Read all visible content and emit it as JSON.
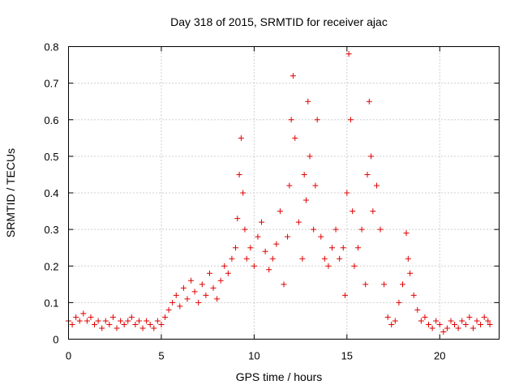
{
  "chart_data": {
    "type": "scatter",
    "title": "Day 318 of 2015, SRMTID for receiver ajac",
    "xlabel": "GPS time / hours",
    "ylabel": "SRMTID / TECUs",
    "xlim": [
      0,
      23.2
    ],
    "ylim": [
      0,
      0.8
    ],
    "xticks": [
      0,
      5,
      10,
      15,
      20
    ],
    "xtick_labels": [
      "0",
      "5",
      "10",
      "15",
      "20"
    ],
    "yticks": [
      0,
      0.1,
      0.2,
      0.3,
      0.4,
      0.5,
      0.6,
      0.7,
      0.8
    ],
    "ytick_labels": [
      "0",
      "0.1",
      "0.2",
      "0.3",
      "0.4",
      "0.5",
      "0.6",
      "0.7",
      "0.8"
    ],
    "grid": true,
    "marker": "+",
    "color": "#e00000",
    "series": [
      {
        "name": "SRMTID",
        "x": [
          0.0,
          0.2,
          0.4,
          0.6,
          0.8,
          1.0,
          1.2,
          1.4,
          1.6,
          1.8,
          2.0,
          2.2,
          2.4,
          2.6,
          2.8,
          3.0,
          3.2,
          3.4,
          3.6,
          3.8,
          4.0,
          4.2,
          4.4,
          4.6,
          4.8,
          5.0,
          5.2,
          5.4,
          5.6,
          5.8,
          6.0,
          6.2,
          6.4,
          6.6,
          6.8,
          7.0,
          7.2,
          7.4,
          7.6,
          7.8,
          8.0,
          8.2,
          8.4,
          8.6,
          8.8,
          9.0,
          9.1,
          9.2,
          9.3,
          9.4,
          9.5,
          9.6,
          9.8,
          10.0,
          10.2,
          10.4,
          10.6,
          10.8,
          11.0,
          11.2,
          11.4,
          11.6,
          11.8,
          11.9,
          12.0,
          12.1,
          12.2,
          12.4,
          12.6,
          12.7,
          12.8,
          12.9,
          13.0,
          13.2,
          13.3,
          13.4,
          13.6,
          13.8,
          14.0,
          14.2,
          14.4,
          14.6,
          14.8,
          14.9,
          15.0,
          15.1,
          15.2,
          15.3,
          15.4,
          15.6,
          15.8,
          16.0,
          16.1,
          16.2,
          16.3,
          16.4,
          16.6,
          16.8,
          17.0,
          17.2,
          17.4,
          17.6,
          17.8,
          18.0,
          18.2,
          18.3,
          18.4,
          18.6,
          18.8,
          19.0,
          19.2,
          19.4,
          19.6,
          19.8,
          20.0,
          20.2,
          20.4,
          20.6,
          20.8,
          21.0,
          21.2,
          21.4,
          21.6,
          21.8,
          22.0,
          22.2,
          22.4,
          22.6,
          22.7
        ],
        "y": [
          0.05,
          0.04,
          0.06,
          0.05,
          0.07,
          0.05,
          0.06,
          0.04,
          0.05,
          0.03,
          0.05,
          0.04,
          0.06,
          0.03,
          0.05,
          0.04,
          0.05,
          0.06,
          0.04,
          0.05,
          0.03,
          0.05,
          0.04,
          0.03,
          0.05,
          0.04,
          0.06,
          0.08,
          0.1,
          0.12,
          0.09,
          0.14,
          0.11,
          0.16,
          0.13,
          0.1,
          0.15,
          0.12,
          0.18,
          0.14,
          0.11,
          0.16,
          0.2,
          0.18,
          0.22,
          0.25,
          0.33,
          0.45,
          0.55,
          0.4,
          0.3,
          0.22,
          0.25,
          0.2,
          0.28,
          0.32,
          0.24,
          0.19,
          0.22,
          0.26,
          0.35,
          0.15,
          0.28,
          0.42,
          0.6,
          0.72,
          0.55,
          0.32,
          0.22,
          0.45,
          0.38,
          0.65,
          0.5,
          0.3,
          0.42,
          0.6,
          0.28,
          0.22,
          0.2,
          0.25,
          0.3,
          0.22,
          0.25,
          0.12,
          0.4,
          0.78,
          0.6,
          0.35,
          0.2,
          0.25,
          0.3,
          0.15,
          0.45,
          0.65,
          0.5,
          0.35,
          0.42,
          0.3,
          0.15,
          0.06,
          0.04,
          0.05,
          0.1,
          0.15,
          0.29,
          0.22,
          0.18,
          0.12,
          0.08,
          0.05,
          0.06,
          0.04,
          0.03,
          0.05,
          0.04,
          0.02,
          0.03,
          0.05,
          0.04,
          0.03,
          0.05,
          0.04,
          0.06,
          0.03,
          0.05,
          0.04,
          0.06,
          0.05,
          0.04
        ]
      }
    ]
  }
}
